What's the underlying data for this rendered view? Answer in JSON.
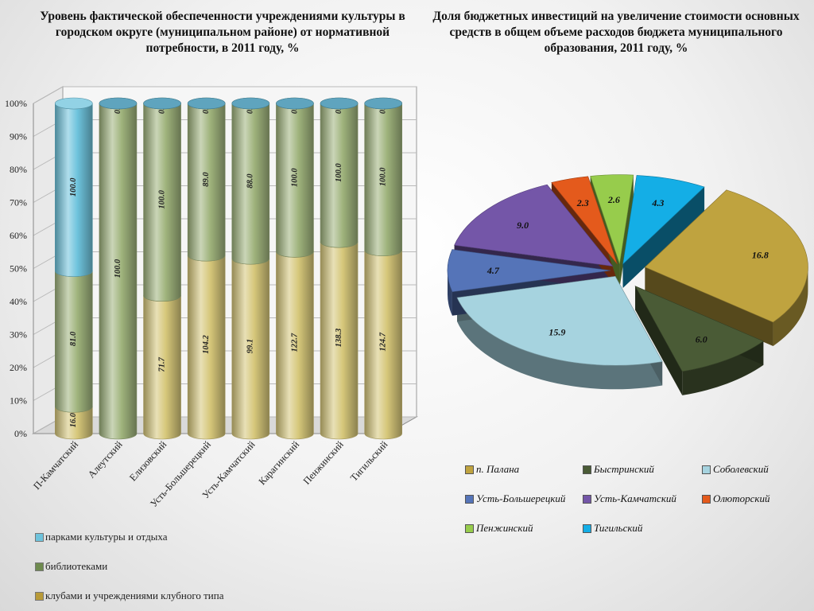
{
  "left_title": "Уровень фактической обеспеченности учреждениями культуры в городском округе (муниципальном районе) от нормативной потребности, в 2011 году, %",
  "right_title": "Доля бюджетных инвестиций на увеличение стоимости основных средств в общем объеме расходов бюджета муниципального образования, 2011 году, %",
  "colors": {
    "clubs": "#d6c77a",
    "libraries": "#9fb37c",
    "parks": "#6ec3dc"
  },
  "chart_data": [
    {
      "type": "bar",
      "stacked": "percent",
      "categories": [
        "П-Камчатский",
        "Алеутский",
        "Елизовский",
        "Усть-Большерецкий",
        "Усть-Камчатский",
        "Карагинский",
        "Пенжинский",
        "Тигильский"
      ],
      "series": [
        {
          "name": "клубами и учреждениями клубного типа",
          "values": [
            16.0,
            0.0,
            71.7,
            104.2,
            99.1,
            122.7,
            138.3,
            124.7
          ],
          "labels": [
            "16.0",
            "0.0",
            "71.7",
            "104.2",
            "99.1",
            "122.7",
            "138.3",
            "124.7"
          ]
        },
        {
          "name": "библиотеками",
          "values": [
            81.0,
            100.0,
            100.0,
            89.0,
            88.0,
            100.0,
            100.0,
            100.0
          ],
          "labels": [
            "81.0",
            "100.0",
            "100.0",
            "89.0",
            "88.0",
            "100.0",
            "100.0",
            "100.0"
          ]
        },
        {
          "name": "парками культуры и отдыха",
          "values": [
            100.0,
            0.0,
            0.0,
            0.0,
            0.0,
            0.0,
            0.0,
            0.0
          ],
          "labels": [
            "100.0",
            "0.0",
            "0.0",
            "0.0",
            "0.0",
            "0.0",
            "0.0",
            "0.0"
          ]
        }
      ],
      "yticks": [
        "0%",
        "10%",
        "20%",
        "30%",
        "40%",
        "50%",
        "60%",
        "70%",
        "80%",
        "90%",
        "100%"
      ],
      "ylim": [
        0,
        100
      ],
      "legend_position": "bottom-left"
    },
    {
      "type": "pie",
      "three_d": true,
      "slices": [
        {
          "name": "п. Палана",
          "value": 16.8,
          "label": "16.8",
          "color": "#bfa33f"
        },
        {
          "name": "Быстринский",
          "value": 6.0,
          "label": "6.0",
          "color": "#4a5b36"
        },
        {
          "name": "Соболевский",
          "value": 15.9,
          "label": "15.9",
          "color": "#a6d3df"
        },
        {
          "name": "Усть-Большерецкий",
          "value": 4.7,
          "label": "4.7",
          "color": "#5574b8"
        },
        {
          "name": "Усть-Камчатский",
          "value": 9.0,
          "label": "9.0",
          "color": "#7456a8"
        },
        {
          "name": "Олюторский",
          "value": 2.3,
          "label": "2.3",
          "color": "#e45a1c"
        },
        {
          "name": "Пенжинский",
          "value": 2.6,
          "label": "2.6",
          "color": "#97cc4c"
        },
        {
          "name": "Тигильский",
          "value": 4.3,
          "label": "4.3",
          "color": "#14aee6"
        }
      ],
      "legend_position": "bottom"
    }
  ]
}
